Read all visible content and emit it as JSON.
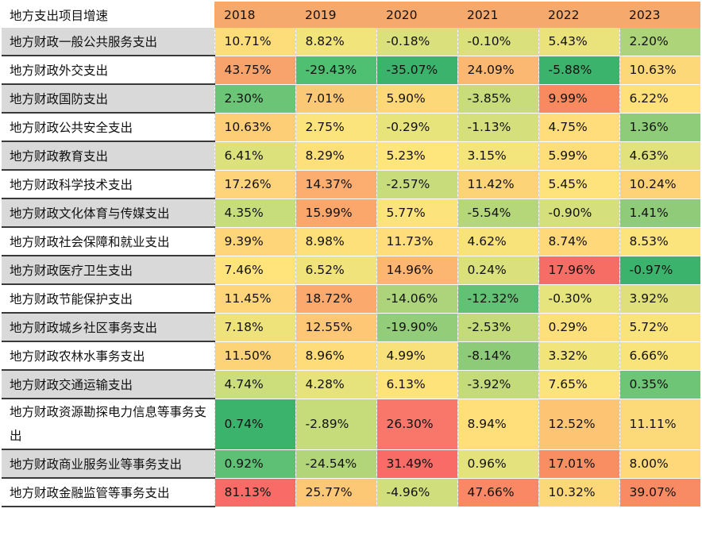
{
  "table": {
    "title": "地方支出项目增速",
    "years": [
      "2018",
      "2019",
      "2020",
      "2021",
      "2022",
      "2023"
    ],
    "rows": [
      {
        "label": "地方财政一般公共服务支出",
        "values": [
          "10.71%",
          "8.82%",
          "-0.18%",
          "-0.10%",
          "5.43%",
          "2.20%"
        ],
        "colors": [
          "#FDDD79",
          "#F1E47B",
          "#D9E07C",
          "#D9E07C",
          "#EAE27B",
          "#AED47A"
        ]
      },
      {
        "label": "地方财政外交支出",
        "values": [
          "43.75%",
          "-29.43%",
          "-35.07%",
          "24.09%",
          "-5.88%",
          "10.63%"
        ],
        "colors": [
          "#F8A26C",
          "#4FBF72",
          "#3CB36D",
          "#FBB872",
          "#3CB36D",
          "#FDD878"
        ]
      },
      {
        "label": "地方财政国防支出",
        "values": [
          "2.30%",
          "7.01%",
          "5.90%",
          "-3.85%",
          "9.99%",
          "6.22%"
        ],
        "colors": [
          "#6CC476",
          "#FBC975",
          "#FDD878",
          "#C8DC7B",
          "#F9895F",
          "#FEE17B"
        ]
      },
      {
        "label": "地方财政公共安全支出",
        "values": [
          "10.63%",
          "2.75%",
          "-0.29%",
          "-1.13%",
          "4.75%",
          "1.36%"
        ],
        "colors": [
          "#FDCE75",
          "#FBE47B",
          "#E8E47C",
          "#D5E07C",
          "#FEDD7A",
          "#8FCC79"
        ]
      },
      {
        "label": "地方财政教育支出",
        "values": [
          "6.41%",
          "8.29%",
          "5.23%",
          "3.15%",
          "5.99%",
          "4.63%"
        ],
        "colors": [
          "#DCE17C",
          "#FEE07A",
          "#FEE57C",
          "#F3E57C",
          "#FEDE7A",
          "#E2E27C"
        ]
      },
      {
        "label": "地方财政科学技术支出",
        "values": [
          "17.26%",
          "14.37%",
          "-2.57%",
          "11.42%",
          "5.45%",
          "10.24%"
        ],
        "colors": [
          "#FDD479",
          "#FBAE6F",
          "#C9DC7B",
          "#FDD377",
          "#FEE27B",
          "#FED276"
        ]
      },
      {
        "label": "地方财政文化体育与传媒支出",
        "values": [
          "4.35%",
          "15.99%",
          "5.77%",
          "-5.54%",
          "-0.90%",
          "1.41%"
        ],
        "colors": [
          "#C7DC7B",
          "#FBA66B",
          "#FCE37B",
          "#B6D67A",
          "#D5E07C",
          "#8FCB79"
        ]
      },
      {
        "label": "地方财政社会保障和就业支出",
        "values": [
          "9.39%",
          "8.98%",
          "11.73%",
          "4.62%",
          "8.74%",
          "8.53%"
        ],
        "colors": [
          "#FED579",
          "#FEE07A",
          "#FEDD7A",
          "#F8E37B",
          "#FED879",
          "#FCE47C"
        ]
      },
      {
        "label": "地方财政医疗卫生支出",
        "values": [
          "7.46%",
          "6.52%",
          "14.96%",
          "0.24%",
          "17.96%",
          "-0.97%"
        ],
        "colors": [
          "#FEE47B",
          "#F0E37B",
          "#FCB671",
          "#D9E07C",
          "#F66D66",
          "#3CB36D"
        ]
      },
      {
        "label": "地方财政节能保护支出",
        "values": [
          "11.45%",
          "18.72%",
          "-14.06%",
          "-12.32%",
          "-0.30%",
          "3.92%"
        ],
        "colors": [
          "#FED579",
          "#FBA96D",
          "#ADD47A",
          "#62C174",
          "#E6E47D",
          "#DFE07C"
        ]
      },
      {
        "label": "地方财政城乡社区事务支出",
        "values": [
          "7.18%",
          "12.55%",
          "-19.90%",
          "-2.53%",
          "0.29%",
          "5.72%"
        ],
        "colors": [
          "#EEE37B",
          "#FDC775",
          "#94CD79",
          "#C5DB7B",
          "#FEE07A",
          "#F9E37B"
        ]
      },
      {
        "label": "地方财政农林水事务支出",
        "values": [
          "11.50%",
          "8.96%",
          "4.99%",
          "-8.14%",
          "3.32%",
          "6.66%"
        ],
        "colors": [
          "#FDD378",
          "#FEDC79",
          "#F8E17B",
          "#8ECB79",
          "#F1E47B",
          "#F8E47B"
        ]
      },
      {
        "label": "地方财政交通运输支出",
        "values": [
          "4.74%",
          "4.28%",
          "6.13%",
          "-3.92%",
          "7.65%",
          "0.35%"
        ],
        "colors": [
          "#CCDE7B",
          "#E6E27C",
          "#FEE37B",
          "#C3DB7B",
          "#FCE47C",
          "#6EC576"
        ]
      },
      {
        "label": "地方财政资源勘探电力信息等事务支出",
        "values": [
          "0.74%",
          "-2.89%",
          "26.30%",
          "8.94%",
          "12.52%",
          "11.11%"
        ],
        "colors": [
          "#3CB36D",
          "#C6DC7B",
          "#F8766A",
          "#FEDF7A",
          "#FDC473",
          "#FDDA79"
        ]
      },
      {
        "label": "地方财政商业服务业等事务支出",
        "values": [
          "0.92%",
          "-24.54%",
          "31.49%",
          "0.96%",
          "17.01%",
          "8.00%"
        ],
        "colors": [
          "#5EC074",
          "#B2D57A",
          "#F86B66",
          "#E4E27C",
          "#F98E62",
          "#FED879"
        ]
      },
      {
        "label": "地方财政金融监管等事务支出",
        "values": [
          "81.13%",
          "25.77%",
          "-4.96%",
          "47.66%",
          "10.32%",
          "39.07%"
        ],
        "colors": [
          "#F86B66",
          "#FDC875",
          "#D0DE7B",
          "#FA8864",
          "#FDD878",
          "#F98B64"
        ]
      }
    ]
  }
}
